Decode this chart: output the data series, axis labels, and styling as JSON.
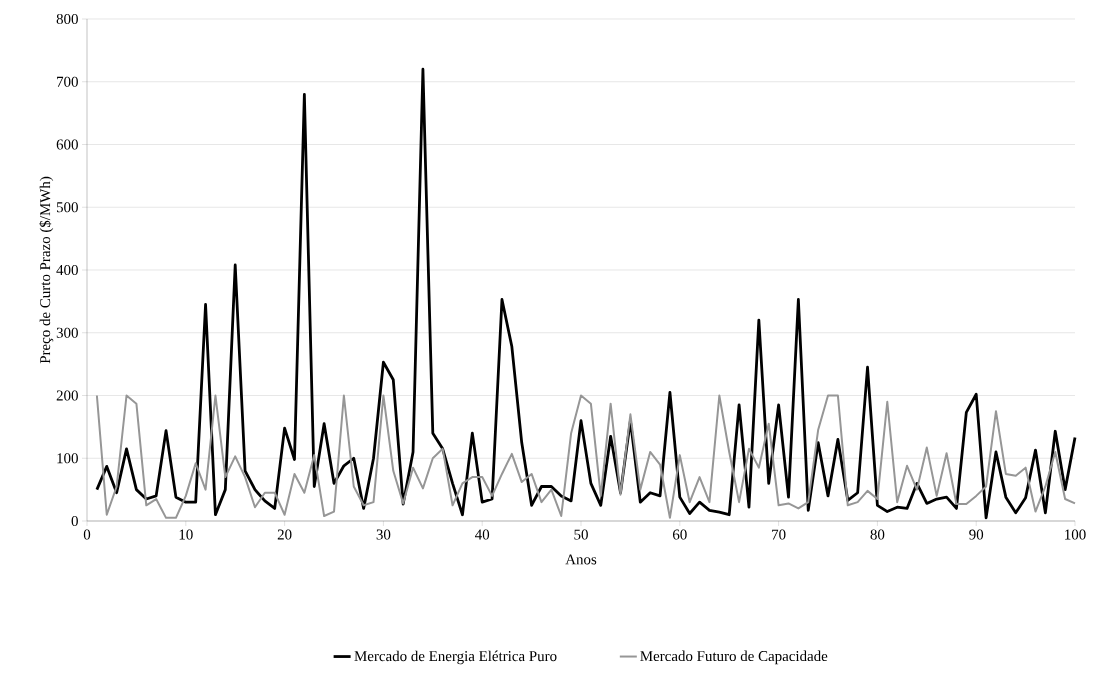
{
  "chart_data": {
    "type": "line",
    "xlabel": "Anos",
    "ylabel": "Preço de Curto Prazo ($/MWh)",
    "x": [
      1,
      2,
      3,
      4,
      5,
      6,
      7,
      8,
      9,
      10,
      11,
      12,
      13,
      14,
      15,
      16,
      17,
      18,
      19,
      20,
      21,
      22,
      23,
      24,
      25,
      26,
      27,
      28,
      29,
      30,
      31,
      32,
      33,
      34,
      35,
      36,
      37,
      38,
      39,
      40,
      41,
      42,
      43,
      44,
      45,
      46,
      47,
      48,
      49,
      50,
      51,
      52,
      53,
      54,
      55,
      56,
      57,
      58,
      59,
      60,
      61,
      62,
      63,
      64,
      65,
      66,
      67,
      68,
      69,
      70,
      71,
      72,
      73,
      74,
      75,
      76,
      77,
      78,
      79,
      80,
      81,
      82,
      83,
      84,
      85,
      86,
      87,
      88,
      89,
      90,
      91,
      92,
      93,
      94,
      95,
      96,
      97,
      98,
      99,
      100
    ],
    "series": [
      {
        "name": "Mercado de Energia Elétrica Puro",
        "color": "#000000",
        "values": [
          50,
          87,
          45,
          115,
          50,
          35,
          40,
          144,
          38,
          30,
          30,
          345,
          10,
          50,
          408,
          80,
          50,
          32,
          20,
          148,
          98,
          680,
          55,
          155,
          60,
          88,
          100,
          20,
          100,
          253,
          225,
          27,
          110,
          720,
          140,
          115,
          60,
          10,
          140,
          30,
          35,
          353,
          278,
          125,
          25,
          55,
          55,
          40,
          32,
          160,
          60,
          25,
          135,
          45,
          160,
          30,
          45,
          40,
          205,
          38,
          12,
          30,
          17,
          14,
          10,
          185,
          22,
          320,
          60,
          185,
          38,
          353,
          17,
          125,
          40,
          130,
          33,
          45,
          245,
          25,
          15,
          22,
          20,
          60,
          28,
          35,
          38,
          20,
          173,
          202,
          5,
          110,
          38,
          13,
          37,
          113,
          13,
          143,
          50,
          133
        ]
      },
      {
        "name": "Mercado Futuro de Capacidade",
        "color": "#969696",
        "values": [
          200,
          10,
          55,
          200,
          187,
          25,
          35,
          5,
          5,
          40,
          92,
          50,
          200,
          70,
          103,
          70,
          22,
          45,
          45,
          10,
          75,
          45,
          105,
          8,
          15,
          200,
          55,
          25,
          30,
          200,
          80,
          28,
          85,
          52,
          100,
          115,
          25,
          60,
          70,
          70,
          40,
          75,
          107,
          62,
          75,
          30,
          50,
          8,
          140,
          200,
          187,
          40,
          187,
          42,
          170,
          50,
          110,
          90,
          5,
          105,
          30,
          70,
          30,
          200,
          110,
          30,
          115,
          85,
          155,
          25,
          28,
          20,
          30,
          145,
          200,
          200,
          25,
          30,
          48,
          35,
          190,
          30,
          88,
          50,
          117,
          40,
          108,
          27,
          27,
          40,
          55,
          175,
          75,
          72,
          85,
          15,
          55,
          110,
          35,
          28
        ]
      }
    ],
    "xlim": [
      0,
      100
    ],
    "xticks": [
      0,
      10,
      20,
      30,
      40,
      50,
      60,
      70,
      80,
      90,
      100
    ],
    "ylim": [
      0,
      800
    ],
    "yticks": [
      0,
      100,
      200,
      300,
      400,
      500,
      600,
      700,
      800
    ],
    "grid": "y",
    "legend": "bottom",
    "marker": "none",
    "line_style": "solid"
  }
}
